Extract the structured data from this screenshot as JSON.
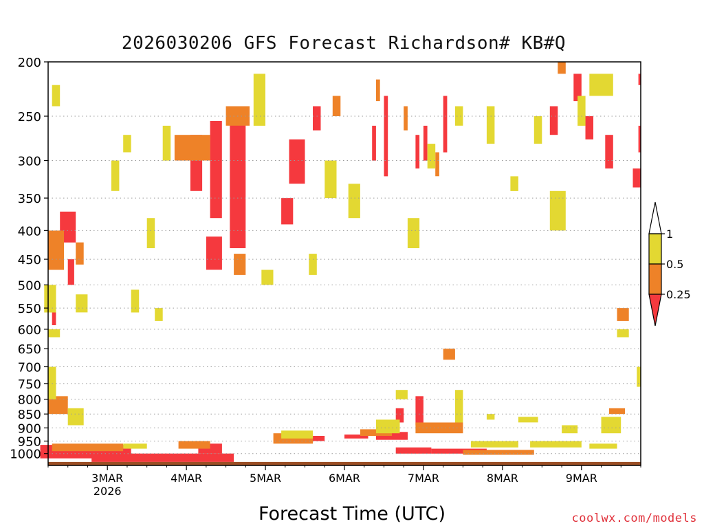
{
  "chart_data": {
    "type": "heatmap",
    "title": "2026030206 GFS Forecast Richardson# KB#Q",
    "xlabel": "Forecast Time (UTC)",
    "ylabel": "",
    "y_scale": "log-pressure (inverted)",
    "ylim": [
      1050,
      200
    ],
    "y_ticks": [
      200,
      250,
      300,
      350,
      400,
      450,
      500,
      550,
      600,
      650,
      700,
      750,
      800,
      850,
      900,
      950,
      1000
    ],
    "y_tick_labels": [
      "200",
      "250",
      "300",
      "350",
      "400",
      "450",
      "500",
      "550",
      "600",
      "650",
      "700",
      "750",
      "800",
      "850",
      "900",
      "950",
      "1000"
    ],
    "x_range_days": [
      2.25,
      9.75
    ],
    "x_ticks": [
      3,
      4,
      5,
      6,
      7,
      8,
      9
    ],
    "x_tick_labels": [
      "3MAR",
      "4MAR",
      "5MAR",
      "6MAR",
      "7MAR",
      "8MAR",
      "9MAR"
    ],
    "x_sublabel": "2026",
    "gridlines": "dotted at each y tick",
    "legend": {
      "placement": "right",
      "ticks": [
        "1",
        "0.5",
        "0.25"
      ],
      "classes": [
        {
          "range": "> 1",
          "color": "#ffffff"
        },
        {
          "range": "0.5 – 1",
          "color": "#e3d832"
        },
        {
          "range": "0.25 – 0.5",
          "color": "#ee8228"
        },
        {
          "range": "< 0.25",
          "color": "#f5393e"
        }
      ]
    },
    "ground_color": "#9b4f25",
    "colors": {
      "yellow": "#e3d832",
      "orange": "#ee8228",
      "red": "#f5393e",
      "ground": "#9b4f25"
    },
    "series": [
      {
        "name": "Ri < 0.25",
        "color": "#f5393e",
        "cells": [
          [
            4.55,
            255,
            4.75,
            430
          ],
          [
            4.3,
            255,
            4.45,
            380
          ],
          [
            4.05,
            270,
            4.2,
            340
          ],
          [
            2.4,
            370,
            2.6,
            420
          ],
          [
            4.25,
            410,
            4.45,
            470
          ],
          [
            5.3,
            275,
            5.5,
            330
          ],
          [
            5.2,
            350,
            5.35,
            390
          ],
          [
            6.5,
            230,
            6.55,
            320
          ],
          [
            6.35,
            260,
            6.4,
            300
          ],
          [
            5.6,
            240,
            5.7,
            265
          ],
          [
            6.9,
            270,
            6.95,
            310
          ],
          [
            7.0,
            260,
            7.05,
            300
          ],
          [
            7.25,
            230,
            7.3,
            290
          ],
          [
            8.6,
            240,
            8.7,
            270
          ],
          [
            8.9,
            210,
            9.0,
            235
          ],
          [
            9.05,
            250,
            9.15,
            275
          ],
          [
            9.3,
            270,
            9.4,
            310
          ],
          [
            9.72,
            260,
            9.75,
            290
          ],
          [
            9.65,
            310,
            9.75,
            335
          ],
          [
            9.72,
            210,
            9.75,
            220
          ],
          [
            2.5,
            450,
            2.58,
            500
          ],
          [
            2.3,
            550,
            2.35,
            590
          ],
          [
            2.15,
            965,
            3.3,
            1020
          ],
          [
            2.8,
            1000,
            4.6,
            1035
          ],
          [
            4.15,
            960,
            4.45,
            1000
          ],
          [
            5.5,
            930,
            5.75,
            950
          ],
          [
            6.4,
            915,
            6.8,
            945
          ],
          [
            6.65,
            975,
            7.1,
            1000
          ],
          [
            6.9,
            790,
            7.0,
            890
          ],
          [
            6.65,
            830,
            6.75,
            880
          ],
          [
            6.0,
            925,
            6.3,
            940
          ],
          [
            7.1,
            980,
            7.8,
            1000
          ]
        ]
      },
      {
        "name": "0.25 < Ri < 0.5",
        "color": "#ee8228",
        "cells": [
          [
            3.85,
            270,
            4.3,
            300
          ],
          [
            4.5,
            240,
            4.8,
            260
          ],
          [
            4.6,
            440,
            4.75,
            480
          ],
          [
            2.25,
            400,
            2.45,
            470
          ],
          [
            2.6,
            420,
            2.7,
            460
          ],
          [
            5.85,
            230,
            5.95,
            250
          ],
          [
            6.4,
            215,
            6.45,
            235
          ],
          [
            7.15,
            290,
            7.2,
            320
          ],
          [
            6.75,
            240,
            6.8,
            265
          ],
          [
            7.25,
            650,
            7.4,
            680
          ],
          [
            9.45,
            550,
            9.6,
            580
          ],
          [
            9.35,
            830,
            9.55,
            850
          ],
          [
            8.7,
            200,
            8.8,
            210
          ],
          [
            2.25,
            790,
            2.5,
            850
          ],
          [
            3.9,
            950,
            4.3,
            980
          ],
          [
            5.1,
            920,
            5.6,
            960
          ],
          [
            6.2,
            905,
            6.6,
            930
          ],
          [
            6.9,
            880,
            7.5,
            920
          ],
          [
            7.5,
            985,
            8.4,
            1005
          ],
          [
            2.3,
            960,
            3.2,
            990
          ]
        ]
      },
      {
        "name": "0.5 < Ri < 1",
        "color": "#e3d832",
        "cells": [
          [
            2.3,
            220,
            2.4,
            240
          ],
          [
            3.2,
            270,
            3.3,
            290
          ],
          [
            3.05,
            300,
            3.15,
            340
          ],
          [
            3.7,
            260,
            3.8,
            300
          ],
          [
            4.85,
            210,
            5.0,
            260
          ],
          [
            5.75,
            300,
            5.9,
            350
          ],
          [
            6.05,
            330,
            6.2,
            380
          ],
          [
            6.8,
            380,
            6.95,
            430
          ],
          [
            7.05,
            280,
            7.15,
            310
          ],
          [
            7.4,
            240,
            7.5,
            260
          ],
          [
            7.8,
            240,
            7.9,
            280
          ],
          [
            8.1,
            320,
            8.2,
            340
          ],
          [
            8.4,
            250,
            8.5,
            280
          ],
          [
            8.6,
            340,
            8.8,
            400
          ],
          [
            8.95,
            230,
            9.05,
            260
          ],
          [
            9.1,
            210,
            9.4,
            230
          ],
          [
            2.2,
            500,
            2.35,
            560
          ],
          [
            2.6,
            520,
            2.75,
            560
          ],
          [
            3.5,
            380,
            3.6,
            430
          ],
          [
            3.3,
            510,
            3.4,
            560
          ],
          [
            2.25,
            600,
            2.4,
            620
          ],
          [
            3.6,
            550,
            3.7,
            580
          ],
          [
            4.95,
            470,
            5.1,
            500
          ],
          [
            5.55,
            440,
            5.65,
            480
          ],
          [
            6.65,
            770,
            6.8,
            800
          ],
          [
            7.4,
            770,
            7.5,
            880
          ],
          [
            7.8,
            850,
            7.9,
            870
          ],
          [
            8.2,
            860,
            8.45,
            880
          ],
          [
            8.75,
            890,
            8.95,
            920
          ],
          [
            9.25,
            860,
            9.5,
            920
          ],
          [
            9.45,
            600,
            9.6,
            620
          ],
          [
            9.7,
            700,
            9.75,
            760
          ],
          [
            2.25,
            700,
            2.35,
            800
          ],
          [
            2.5,
            830,
            2.7,
            890
          ],
          [
            5.2,
            910,
            5.6,
            940
          ],
          [
            6.4,
            870,
            6.7,
            920
          ],
          [
            8.35,
            950,
            9.0,
            975
          ],
          [
            9.1,
            960,
            9.45,
            980
          ],
          [
            3.2,
            960,
            3.5,
            980
          ],
          [
            7.6,
            950,
            8.2,
            975
          ]
        ]
      }
    ]
  }
}
